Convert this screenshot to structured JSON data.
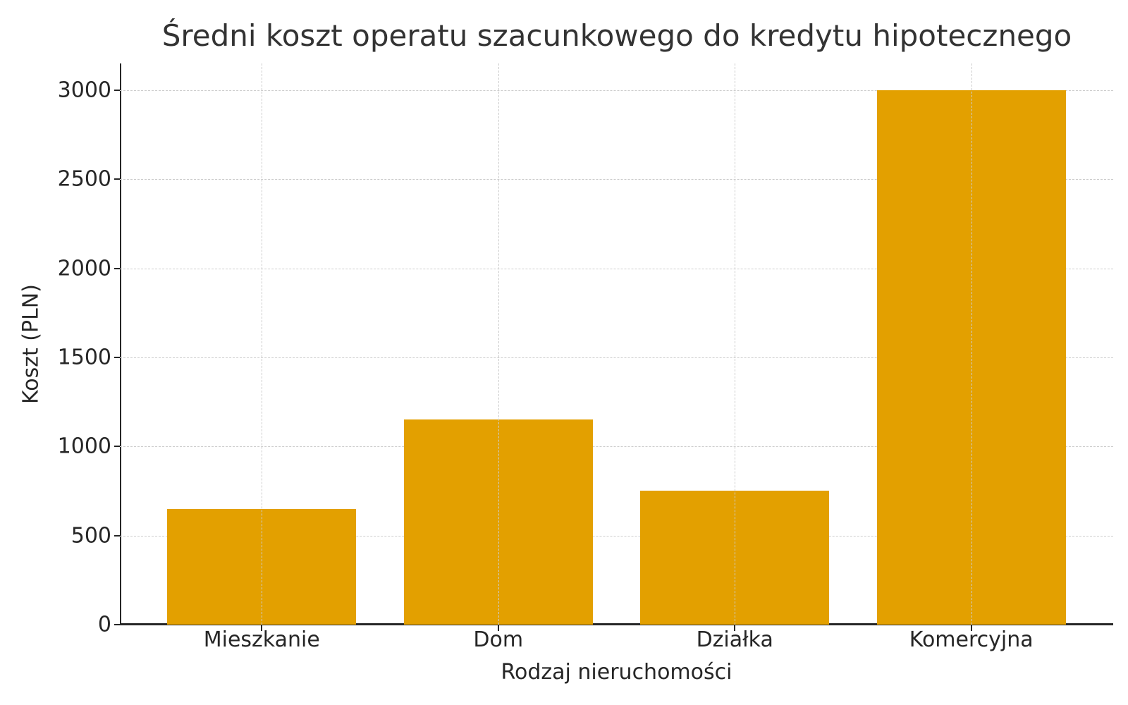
{
  "chart_data": {
    "type": "bar",
    "title": "Średni koszt operatu szacunkowego do kredytu hipotecznego",
    "xlabel": "Rodzaj nieruchomości",
    "ylabel": "Koszt (PLN)",
    "categories": [
      "Mieszkanie",
      "Dom",
      "Działka",
      "Komercyjna"
    ],
    "values": [
      650,
      1150,
      750,
      3000
    ],
    "ylim": [
      0,
      3150
    ],
    "yticks": [
      "0",
      "500",
      "1000",
      "1500",
      "2000",
      "2500",
      "3000"
    ],
    "grid": true,
    "bar_color": "#e3a000"
  }
}
